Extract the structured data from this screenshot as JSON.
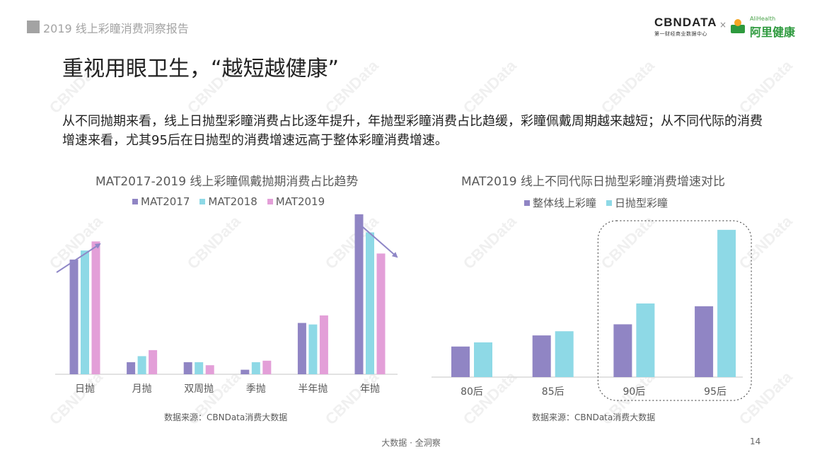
{
  "header": {
    "report_title": "2019 线上彩瞳消费洞察报告",
    "logo_cbn_main": "CBNDATA",
    "logo_cbn_sub": "第一财经商业数据中心",
    "logo_separator": "×",
    "logo_ali_en": "AliHealth",
    "logo_ali_cn": "阿里健康"
  },
  "page_title": "重视用眼卫生，“越短越健康”",
  "summary": "从不同抛期来看，线上日抛型彩瞳消费占比逐年提升，年抛型彩瞳消费占比趋缓，彩瞳佩戴周期越来越短；从不同代际的消费增速来看，尤其95后在日抛型的消费增速远高于整体彩瞳消费增速。",
  "watermark": "CBNData",
  "colors": {
    "purple": "#9085c4",
    "cyan": "#8ed9e6",
    "pink": "#e39fd8",
    "arrow": "#8f87c7"
  },
  "chart_data": [
    {
      "type": "bar",
      "title": "MAT2017-2019 线上彩瞳佩戴抛期消费占比趋势",
      "categories": [
        "日抛",
        "月抛",
        "双周抛",
        "季抛",
        "半年抛",
        "年抛"
      ],
      "series": [
        {
          "name": "MAT2017",
          "values": [
            38,
            4,
            4,
            1.5,
            17,
            53
          ]
        },
        {
          "name": "MAT2018",
          "values": [
            41,
            6,
            4,
            4,
            16.5,
            47
          ]
        },
        {
          "name": "MAT2019",
          "values": [
            44,
            8,
            3,
            4.5,
            19.5,
            40
          ]
        }
      ],
      "ylim": [
        0,
        60
      ],
      "legend": "top",
      "grid": false,
      "source": "数据来源：CBNData消费大数据"
    },
    {
      "type": "bar",
      "title": "MAT2019 线上不同代际日抛型彩瞳消费增速对比",
      "categories": [
        "80后",
        "85后",
        "90后",
        "95后"
      ],
      "series": [
        {
          "name": "整体线上彩瞳",
          "values": [
            22,
            30,
            38,
            51
          ]
        },
        {
          "name": "日抛型彩瞳",
          "values": [
            25,
            33,
            53,
            106
          ]
        }
      ],
      "ylim": [
        0,
        110
      ],
      "legend": "top",
      "grid": false,
      "highlight": [
        "90后",
        "95后"
      ],
      "source": "数据来源：CBNData消费大数据"
    }
  ],
  "footer": {
    "tagline": "大数据 · 全洞察",
    "page_number": "14"
  }
}
